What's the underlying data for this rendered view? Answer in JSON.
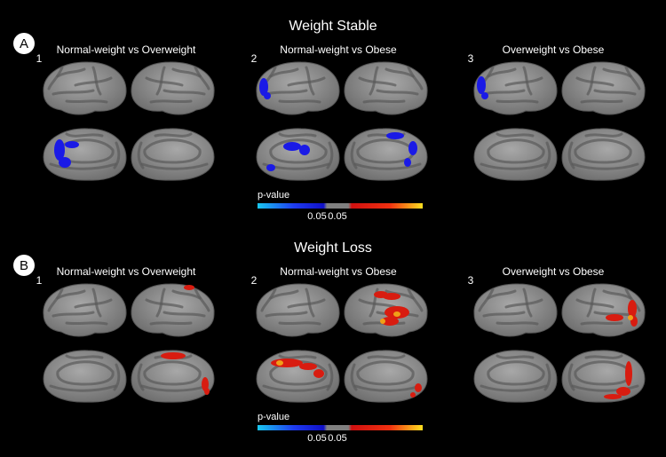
{
  "sections": [
    {
      "badge": "A",
      "title": "Weight Stable",
      "panels": [
        {
          "number": "1",
          "label": "Normal-weight vs Overweight"
        },
        {
          "number": "2",
          "label": "Normal-weight vs Obese"
        },
        {
          "number": "3",
          "label": "Overweight vs Obese"
        }
      ],
      "colorbar": {
        "title": "p-value",
        "labels": [
          "0.05",
          "0.05"
        ]
      }
    },
    {
      "badge": "B",
      "title": "Weight Loss",
      "panels": [
        {
          "number": "1",
          "label": "Normal-weight vs Overweight"
        },
        {
          "number": "2",
          "label": "Normal-weight vs Obese"
        },
        {
          "number": "3",
          "label": "Overweight vs Obese"
        }
      ],
      "colorbar": {
        "title": "p-value",
        "labels": [
          "0.05",
          "0.05"
        ]
      }
    }
  ]
}
